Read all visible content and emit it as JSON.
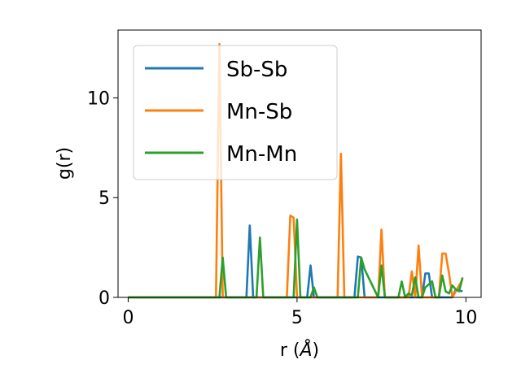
{
  "chart_data": {
    "type": "line",
    "title": "",
    "xlabel_main": "r (",
    "xlabel_unit": "Å",
    "xlabel_close": ")",
    "ylabel": "g(r)",
    "xlim": [
      -0.3,
      10.45
    ],
    "ylim": [
      0,
      13.4
    ],
    "xticks": [
      0,
      5,
      10
    ],
    "yticks": [
      0,
      5,
      10
    ],
    "grid": false,
    "legend_position": "upper-left",
    "series": [
      {
        "name": "Sb-Sb",
        "color": "#1f77b4",
        "x": [
          0,
          3.5,
          3.6,
          3.7,
          5.3,
          5.4,
          5.5,
          6.7,
          6.8,
          6.9,
          7.0,
          8.7,
          8.8,
          8.9,
          9.0,
          9.6,
          9.7,
          9.9
        ],
        "y": [
          0,
          0,
          3.6,
          0,
          0,
          1.6,
          0,
          0,
          2.05,
          2.0,
          0,
          0,
          1.2,
          1.2,
          0,
          0,
          0.4,
          0.3
        ]
      },
      {
        "name": "Mn-Sb",
        "color": "#ff7f0e",
        "x": [
          0,
          2.6,
          2.7,
          2.8,
          4.7,
          4.8,
          4.9,
          5.0,
          6.2,
          6.3,
          6.4,
          7.4,
          7.5,
          7.6,
          8.3,
          8.4,
          8.5,
          8.6,
          8.7,
          9.2,
          9.3,
          9.4,
          9.5,
          9.6,
          9.9
        ],
        "y": [
          0,
          0,
          12.7,
          0,
          0,
          4.1,
          4.0,
          0,
          0,
          7.2,
          0,
          0,
          3.4,
          0,
          0,
          1.3,
          0,
          2.6,
          0,
          0,
          2.2,
          2.2,
          1.2,
          0,
          0.9
        ]
      },
      {
        "name": "Mn-Mn",
        "color": "#2ca02c",
        "x": [
          0,
          2.7,
          2.8,
          2.9,
          3.8,
          3.9,
          4.0,
          4.9,
          5.0,
          5.1,
          5.4,
          5.5,
          5.6,
          6.8,
          6.9,
          7.0,
          7.4,
          7.5,
          7.6,
          8.0,
          8.1,
          8.2,
          8.3,
          8.4,
          8.5,
          8.6,
          8.7,
          8.8,
          9.0,
          9.1,
          9.2,
          9.3,
          9.4,
          9.5,
          9.6,
          9.7,
          9.8,
          9.9
        ],
        "y": [
          0,
          0,
          2.0,
          0,
          0,
          3.0,
          0,
          0,
          3.9,
          0,
          0,
          0.5,
          0,
          0,
          2.0,
          1.4,
          0,
          1.6,
          0,
          0,
          0.8,
          0,
          0.2,
          0.1,
          1.0,
          0,
          0,
          0.5,
          0.8,
          0,
          0,
          1.1,
          0.3,
          0.2,
          0.6,
          0.4,
          0.3,
          1.0
        ]
      }
    ]
  }
}
